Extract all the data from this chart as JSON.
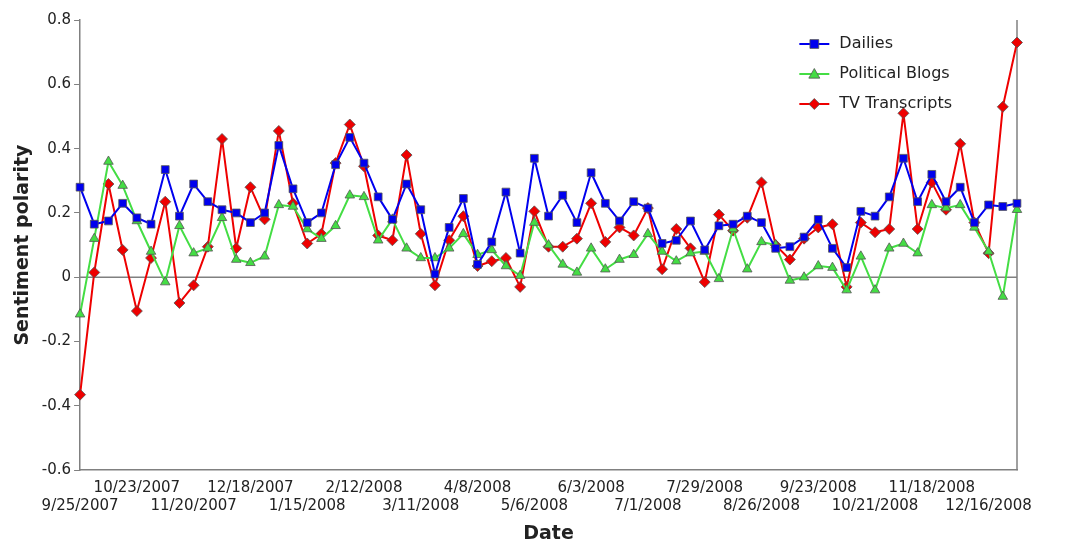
{
  "chart_data": {
    "type": "line",
    "xlabel": "Date",
    "ylabel": "Sentiment polarity",
    "categories": [
      "9/25/2007",
      null,
      null,
      null,
      "10/23/2007",
      null,
      null,
      null,
      "11/20/2007",
      null,
      null,
      null,
      "12/18/2007",
      null,
      null,
      null,
      "1/15/2008",
      null,
      null,
      null,
      "2/12/2008",
      null,
      null,
      null,
      "3/11/2008",
      null,
      null,
      null,
      "4/8/2008",
      null,
      null,
      null,
      "5/6/2008",
      null,
      null,
      null,
      "6/3/2008",
      null,
      null,
      null,
      "7/1/2008",
      null,
      null,
      null,
      "7/29/2008",
      null,
      null,
      null,
      "8/26/2008",
      null,
      null,
      null,
      "9/23/2008",
      null,
      null,
      null,
      "10/21/2008",
      null,
      null,
      null,
      "11/18/2008",
      null,
      null,
      null,
      "12/16/2008",
      null,
      null
    ],
    "series": [
      {
        "name": "Dailies",
        "color": "#0000ee",
        "marker": "square",
        "values": [
          0.28,
          0.165,
          0.175,
          0.23,
          0.185,
          0.165,
          0.335,
          0.19,
          0.29,
          0.235,
          0.21,
          0.2,
          0.17,
          0.2,
          0.41,
          0.275,
          0.17,
          0.2,
          0.35,
          0.435,
          0.355,
          0.25,
          0.18,
          0.29,
          0.21,
          0.01,
          0.155,
          0.245,
          0.04,
          0.11,
          0.265,
          0.075,
          0.37,
          0.19,
          0.255,
          0.17,
          0.325,
          0.23,
          0.175,
          0.235,
          0.215,
          0.105,
          0.115,
          0.175,
          0.085,
          0.16,
          0.165,
          0.19,
          0.17,
          0.09,
          0.095,
          0.125,
          0.18,
          0.09,
          0.03,
          0.205,
          0.19,
          0.25,
          0.37,
          0.235,
          0.32,
          0.235,
          0.28,
          0.17,
          0.225,
          0.22,
          0.23
        ]
      },
      {
        "name": "Political Blogs",
        "color": "#44dd44",
        "marker": "triangle",
        "values": [
          -0.115,
          0.12,
          0.36,
          0.285,
          0.175,
          0.08,
          -0.015,
          0.16,
          0.075,
          0.09,
          0.185,
          0.055,
          0.045,
          0.065,
          0.225,
          0.22,
          0.15,
          0.12,
          0.16,
          0.255,
          0.25,
          0.115,
          0.18,
          0.09,
          0.06,
          0.06,
          0.09,
          0.135,
          0.07,
          0.085,
          0.035,
          0.005,
          0.17,
          0.1,
          0.04,
          0.015,
          0.09,
          0.025,
          0.055,
          0.07,
          0.135,
          0.08,
          0.05,
          0.075,
          0.08,
          -0.005,
          0.15,
          0.025,
          0.11,
          0.1,
          -0.01,
          0.0,
          0.035,
          0.03,
          -0.04,
          0.065,
          -0.04,
          0.09,
          0.105,
          0.075,
          0.225,
          0.215,
          0.225,
          0.155,
          0.08,
          -0.06,
          0.21
        ]
      },
      {
        "name": "TV Transcripts",
        "color": "#ee0000",
        "marker": "diamond",
        "values": [
          -0.365,
          0.015,
          0.29,
          0.085,
          -0.105,
          0.06,
          0.235,
          -0.08,
          -0.025,
          0.095,
          0.43,
          0.09,
          0.28,
          0.18,
          0.455,
          0.23,
          0.105,
          0.135,
          0.355,
          0.475,
          0.345,
          0.13,
          0.115,
          0.38,
          0.135,
          -0.025,
          0.115,
          0.19,
          0.035,
          0.05,
          0.06,
          -0.03,
          0.205,
          0.095,
          0.095,
          0.12,
          0.23,
          0.11,
          0.155,
          0.13,
          0.215,
          0.025,
          0.15,
          0.09,
          -0.015,
          0.195,
          0.145,
          0.185,
          0.295,
          0.1,
          0.055,
          0.12,
          0.155,
          0.165,
          -0.03,
          0.17,
          0.14,
          0.15,
          0.51,
          0.15,
          0.295,
          0.21,
          0.415,
          0.17,
          0.075,
          0.53,
          0.73
        ]
      }
    ],
    "ylim": [
      -0.6,
      0.8
    ],
    "yticks": [
      -0.6,
      -0.4,
      -0.2,
      0,
      0.2,
      0.4,
      0.6,
      0.8
    ],
    "ref_lines": [
      {
        "axis": "y",
        "value": 0,
        "color": "#808080"
      }
    ],
    "grid": false,
    "legend": "top right",
    "line_style": "solid"
  }
}
